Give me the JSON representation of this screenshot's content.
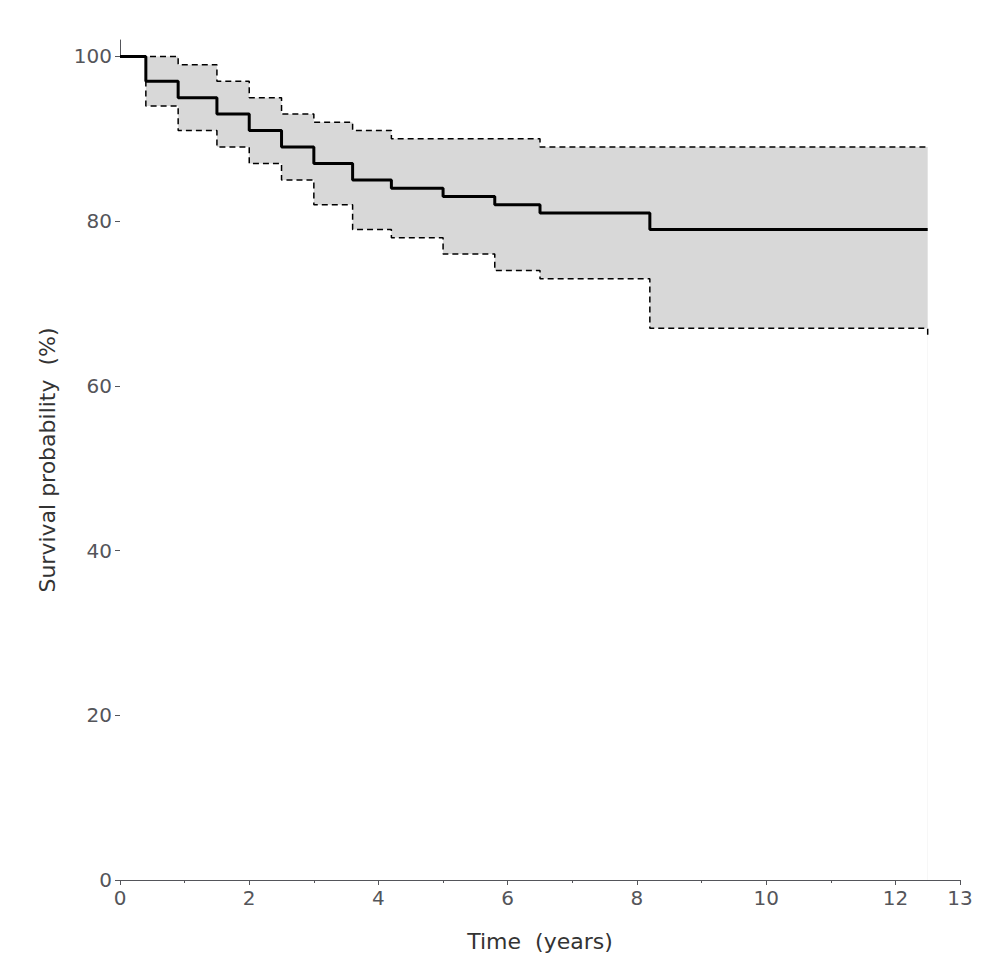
{
  "chart_data": {
    "type": "step",
    "xlabel": "Time  (years)",
    "ylabel": "Survival probability  (%)",
    "xlim": [
      0,
      13
    ],
    "ylim": [
      0,
      102
    ],
    "xticks": [
      0,
      2,
      4,
      6,
      8,
      10,
      12
    ],
    "yticks": [
      0,
      20,
      40,
      60,
      80,
      100
    ],
    "grid": false,
    "x": [
      0,
      0.4,
      0.9,
      1.5,
      2.0,
      2.5,
      3.0,
      3.6,
      4.2,
      5.0,
      5.8,
      6.5,
      7.8,
      8.2,
      12.5
    ],
    "series": [
      {
        "type": "band",
        "color": "#d8d8d8",
        "lower": [
          100,
          94,
          91,
          89,
          87,
          85,
          82,
          79,
          78,
          76,
          74,
          73,
          73,
          67,
          66
        ],
        "upper": [
          100,
          100,
          99,
          97,
          95,
          93,
          92,
          91,
          90,
          90,
          90,
          89,
          89,
          89,
          89
        ]
      },
      {
        "type": "step",
        "color": "#000000",
        "line_style": "dashed",
        "values": [
          100,
          100,
          99,
          97,
          95,
          93,
          92,
          91,
          90,
          90,
          90,
          89,
          89,
          89,
          89
        ]
      },
      {
        "type": "step",
        "color": "#000000",
        "line_style": "dashed",
        "values": [
          100,
          94,
          91,
          89,
          87,
          85,
          82,
          79,
          78,
          76,
          74,
          73,
          73,
          67,
          66
        ]
      },
      {
        "type": "step",
        "color": "#000000",
        "line_style": "solid",
        "values": [
          100,
          97,
          95,
          93,
          91,
          89,
          87,
          85,
          84,
          83,
          82,
          81,
          81,
          79,
          79
        ]
      }
    ]
  }
}
